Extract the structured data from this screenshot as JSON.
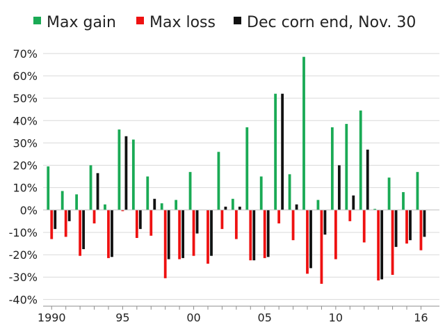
{
  "chart_data": {
    "type": "bar",
    "x": [
      1990,
      1991,
      1992,
      1993,
      1994,
      1995,
      1996,
      1997,
      1998,
      1999,
      2000,
      2001,
      2002,
      2003,
      2004,
      2005,
      2006,
      2007,
      2008,
      2009,
      2010,
      2011,
      2012,
      2013,
      2014,
      2015,
      2016
    ],
    "x_tick_labels": [
      {
        "x": 1990,
        "label": "1990"
      },
      {
        "x": 1995,
        "label": "95"
      },
      {
        "x": 2000,
        "label": "00"
      },
      {
        "x": 2005,
        "label": "05"
      },
      {
        "x": 2010,
        "label": "10"
      },
      {
        "x": 2016,
        "label": "16"
      }
    ],
    "y_ticks": [
      -40,
      -30,
      -20,
      -10,
      0,
      10,
      20,
      30,
      40,
      50,
      60,
      70
    ],
    "y_tick_format": "%",
    "ylim": [
      -43,
      74
    ],
    "xlim": [
      1989.4,
      2017.3
    ],
    "legend_position": "top",
    "grid": "horizontal",
    "series": [
      {
        "name": "Max gain",
        "color": "#1aaa55",
        "values": [
          19.5,
          8.5,
          7.0,
          20.0,
          2.5,
          36.0,
          31.5,
          15.0,
          3.0,
          4.5,
          17.0,
          null,
          26.0,
          5.0,
          37.0,
          15.0,
          52.0,
          16.0,
          68.5,
          4.5,
          37.0,
          38.5,
          44.5,
          0.5,
          14.5,
          8.0,
          17.0
        ]
      },
      {
        "name": "Max loss",
        "color": "#ee1111",
        "values": [
          -13.0,
          -12.0,
          -20.5,
          -6.0,
          -21.5,
          -0.5,
          -12.5,
          -11.5,
          -30.5,
          -22.0,
          -20.5,
          -24.0,
          -8.5,
          -13.0,
          -22.5,
          -21.5,
          -6.0,
          -13.5,
          -28.5,
          -33.0,
          -22.0,
          -5.0,
          -14.5,
          -31.5,
          -29.0,
          -15.0,
          -18.0
        ]
      },
      {
        "name": "Dec corn end, Nov. 30",
        "color": "#111111",
        "values": [
          -8.5,
          -5.0,
          -17.5,
          16.5,
          -21.0,
          33.0,
          -8.5,
          5.0,
          -22.0,
          -21.5,
          -10.5,
          -20.5,
          1.5,
          1.5,
          -22.5,
          -21.0,
          52.0,
          2.5,
          -26.0,
          -11.0,
          20.0,
          6.5,
          27.0,
          -31.0,
          -16.5,
          -13.5,
          -12.0
        ]
      }
    ]
  }
}
